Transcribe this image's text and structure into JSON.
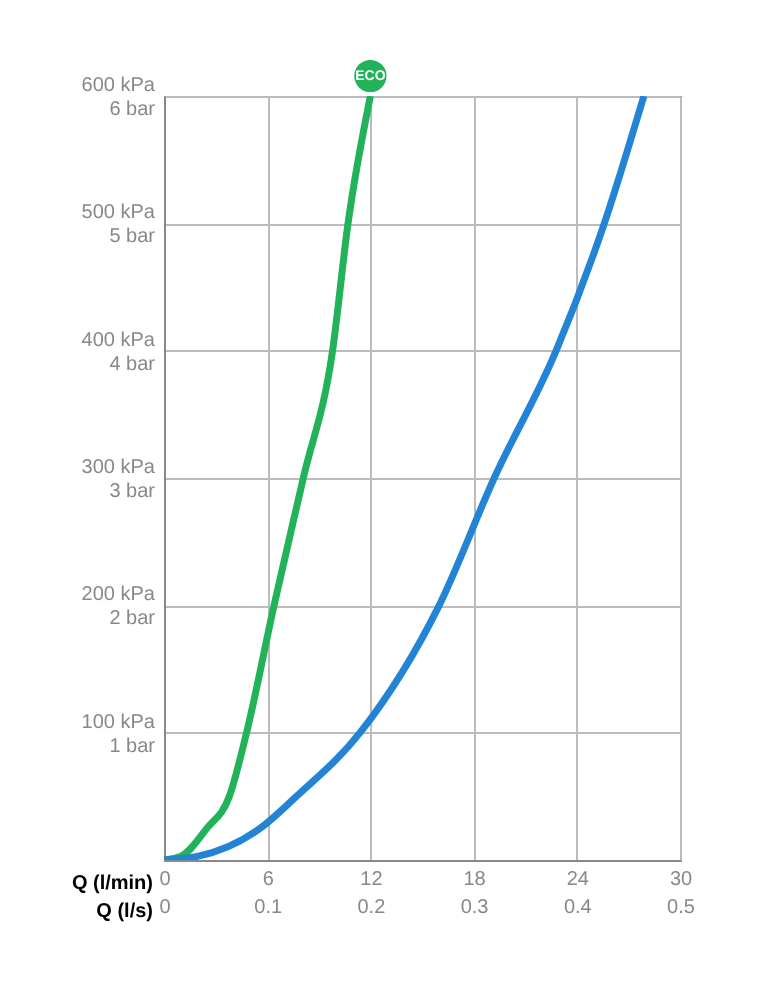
{
  "chart_data": {
    "type": "line",
    "xlabel": "Q (l/min)",
    "x2label": "Q (l/s)",
    "xlim": [
      0,
      30
    ],
    "ylim": [
      0,
      600
    ],
    "x2lim": [
      0,
      0.5
    ],
    "y2lim": [
      0,
      6
    ],
    "xticks": [
      0,
      6,
      12,
      18,
      24,
      30
    ],
    "x2ticks": [
      0,
      0.1,
      0.2,
      0.3,
      0.4,
      0.5
    ],
    "yticks": [
      {
        "value": 100,
        "label": "100 kPa"
      },
      {
        "value": 200,
        "label": "200 kPa"
      },
      {
        "value": 300,
        "label": "300 kPa"
      },
      {
        "value": 400,
        "label": "400 kPa"
      },
      {
        "value": 500,
        "label": "500 kPa"
      },
      {
        "value": 600,
        "label": "600 kPa"
      }
    ],
    "y2ticks": [
      {
        "value": 1,
        "label": "1 bar"
      },
      {
        "value": 2,
        "label": "2 bar"
      },
      {
        "value": 3,
        "label": "3 bar"
      },
      {
        "value": 4,
        "label": "4 bar"
      },
      {
        "value": 5,
        "label": "5 bar"
      },
      {
        "value": 6,
        "label": "6 bar"
      }
    ],
    "grid": true,
    "marker": "none",
    "line_style": "solid",
    "series": [
      {
        "name": "ECO",
        "color": "#21b25a",
        "x": [
          0,
          1,
          2.5,
          3.8,
          4.8,
          6.4,
          8.1,
          9.8,
          10.7,
          12
        ],
        "values": [
          0,
          3,
          25,
          50,
          100,
          200,
          300,
          400,
          500,
          600
        ]
      },
      {
        "color": "#2384d6",
        "x": [
          0,
          2,
          5.6,
          7.7,
          11.4,
          16,
          19.2,
          22.8,
          25.6,
          27.9
        ],
        "values": [
          0,
          3,
          25,
          50,
          100,
          200,
          300,
          400,
          500,
          600
        ]
      }
    ]
  }
}
